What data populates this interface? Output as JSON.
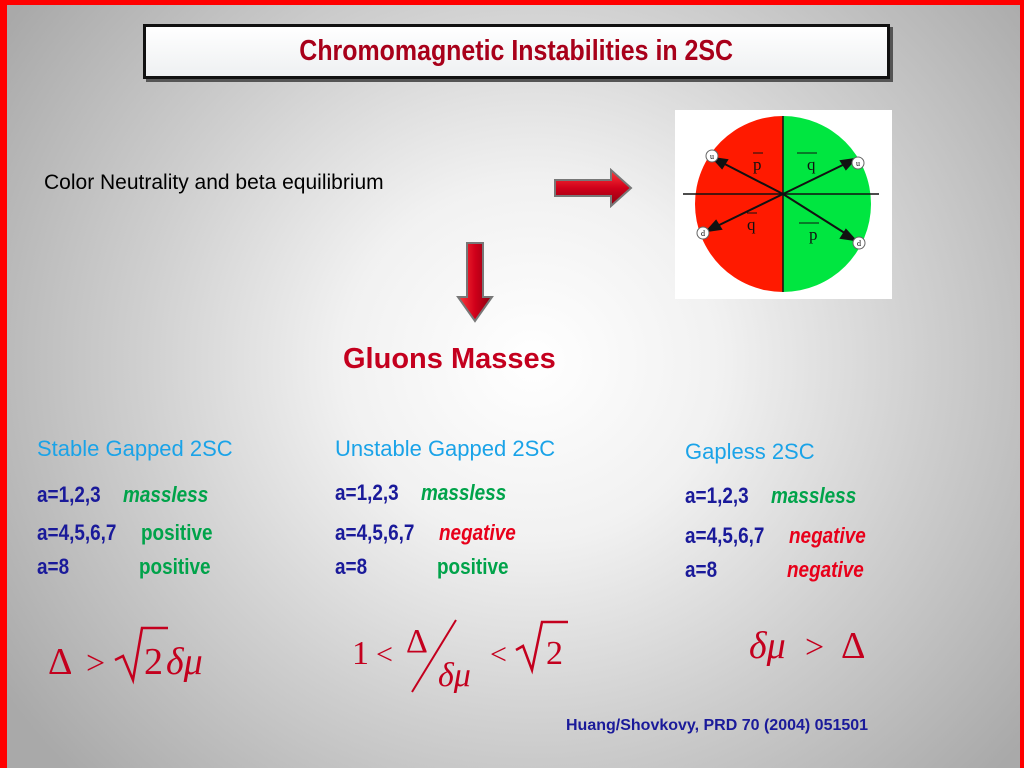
{
  "title": "Chromomagnetic Instabilities in 2SC",
  "intro": "Color Neutrality and beta equilibrium",
  "gluons_heading": "Gluons Masses",
  "fermi_figure": {
    "top_left": "p",
    "top_right": "q",
    "bottom_left": "q",
    "bottom_right": "p",
    "endpoint_u": "u",
    "endpoint_d": "d",
    "colors": {
      "left": "#ff1a00",
      "right": "#00e640"
    }
  },
  "columns": [
    {
      "heading": "Stable Gapped 2SC",
      "rows": [
        {
          "label": "a=1,2,3",
          "value": "massless",
          "kind": "massless"
        },
        {
          "label": "a=4,5,6,7",
          "value": "positive",
          "kind": "positive"
        },
        {
          "label": "a=8",
          "value": "positive",
          "kind": "positive"
        }
      ],
      "formula": {
        "delta": "Δ",
        "gt": ">",
        "two": "2",
        "dmu": "δμ"
      }
    },
    {
      "heading": "Unstable Gapped 2SC",
      "rows": [
        {
          "label": "a=1,2,3",
          "value": "massless",
          "kind": "massless"
        },
        {
          "label": "a=4,5,6,7",
          "value": "negative",
          "kind": "negative"
        },
        {
          "label": "a=8",
          "value": "positive",
          "kind": "positive"
        }
      ],
      "formula": {
        "one": "1",
        "lt1": "<",
        "delta": "Δ",
        "dmu": "δμ",
        "lt2": "<",
        "two": "2"
      }
    },
    {
      "heading": "Gapless 2SC",
      "rows": [
        {
          "label": "a=1,2,3",
          "value": "massless",
          "kind": "massless"
        },
        {
          "label": "a=4,5,6,7",
          "value": "negative",
          "kind": "negative"
        },
        {
          "label": "a=8",
          "value": "negative",
          "kind": "negative"
        }
      ],
      "formula": {
        "dmu": "δμ",
        "gt": ">",
        "delta": "Δ"
      }
    }
  ],
  "citation": "Huang/Shovkovy, PRD 70 (2004) 051501"
}
